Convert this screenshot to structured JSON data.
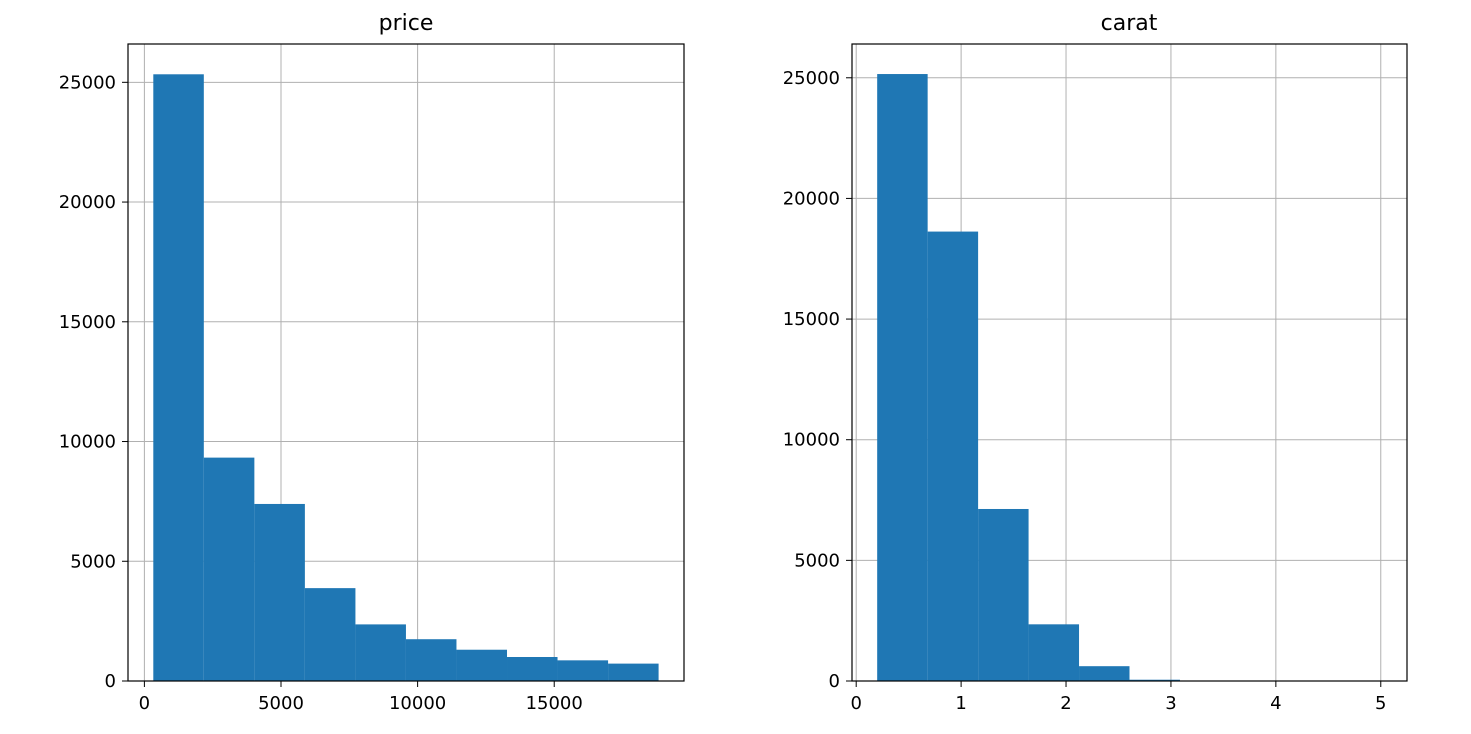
{
  "chart_data": [
    {
      "type": "bar",
      "title": "price",
      "xlabel": "",
      "ylabel": "",
      "bins": [
        {
          "x0": 326,
          "x1": 2175,
          "count": 25335
        },
        {
          "x0": 2175,
          "x1": 4025,
          "count": 9328
        },
        {
          "x0": 4025,
          "x1": 5874,
          "count": 7393
        },
        {
          "x0": 5874,
          "x1": 7724,
          "count": 3878
        },
        {
          "x0": 7724,
          "x1": 9573,
          "count": 2364
        },
        {
          "x0": 9573,
          "x1": 11422,
          "count": 1745
        },
        {
          "x0": 11422,
          "x1": 13272,
          "count": 1306
        },
        {
          "x0": 13272,
          "x1": 15121,
          "count": 1002
        },
        {
          "x0": 15121,
          "x1": 16971,
          "count": 863
        },
        {
          "x0": 16971,
          "x1": 18820,
          "count": 726
        }
      ],
      "xlim": [
        -600,
        19750
      ],
      "ylim": [
        0,
        26600
      ],
      "xticks": [
        {
          "value": 0,
          "label": "0"
        },
        {
          "value": 5000,
          "label": "5000"
        },
        {
          "value": 10000,
          "label": "10000"
        },
        {
          "value": 15000,
          "label": "15000"
        }
      ],
      "yticks": [
        {
          "value": 0,
          "label": "0"
        },
        {
          "value": 5000,
          "label": "5000"
        },
        {
          "value": 10000,
          "label": "10000"
        },
        {
          "value": 15000,
          "label": "15000"
        },
        {
          "value": 20000,
          "label": "20000"
        },
        {
          "value": 25000,
          "label": "25000"
        }
      ],
      "grid": true,
      "bar_color": "#1f77b4"
    },
    {
      "type": "bar",
      "title": "carat",
      "xlabel": "",
      "ylabel": "",
      "bins": [
        {
          "x0": 0.2,
          "x1": 0.681,
          "count": 25155
        },
        {
          "x0": 0.681,
          "x1": 1.162,
          "count": 18626
        },
        {
          "x0": 1.162,
          "x1": 1.643,
          "count": 7129
        },
        {
          "x0": 1.643,
          "x1": 2.124,
          "count": 2349
        },
        {
          "x0": 2.124,
          "x1": 2.605,
          "count": 614
        },
        {
          "x0": 2.605,
          "x1": 3.086,
          "count": 53
        },
        {
          "x0": 3.086,
          "x1": 3.567,
          "count": 6
        },
        {
          "x0": 3.567,
          "x1": 4.048,
          "count": 5
        },
        {
          "x0": 4.048,
          "x1": 4.529,
          "count": 2
        },
        {
          "x0": 4.529,
          "x1": 5.01,
          "count": 1
        }
      ],
      "xlim": [
        -0.04,
        5.25
      ],
      "ylim": [
        0,
        26400
      ],
      "xticks": [
        {
          "value": 0,
          "label": "0"
        },
        {
          "value": 1,
          "label": "1"
        },
        {
          "value": 2,
          "label": "2"
        },
        {
          "value": 3,
          "label": "3"
        },
        {
          "value": 4,
          "label": "4"
        },
        {
          "value": 5,
          "label": "5"
        }
      ],
      "yticks": [
        {
          "value": 0,
          "label": "0"
        },
        {
          "value": 5000,
          "label": "5000"
        },
        {
          "value": 10000,
          "label": "10000"
        },
        {
          "value": 15000,
          "label": "15000"
        },
        {
          "value": 20000,
          "label": "20000"
        },
        {
          "value": 25000,
          "label": "25000"
        }
      ],
      "grid": true,
      "bar_color": "#1f77b4"
    }
  ]
}
